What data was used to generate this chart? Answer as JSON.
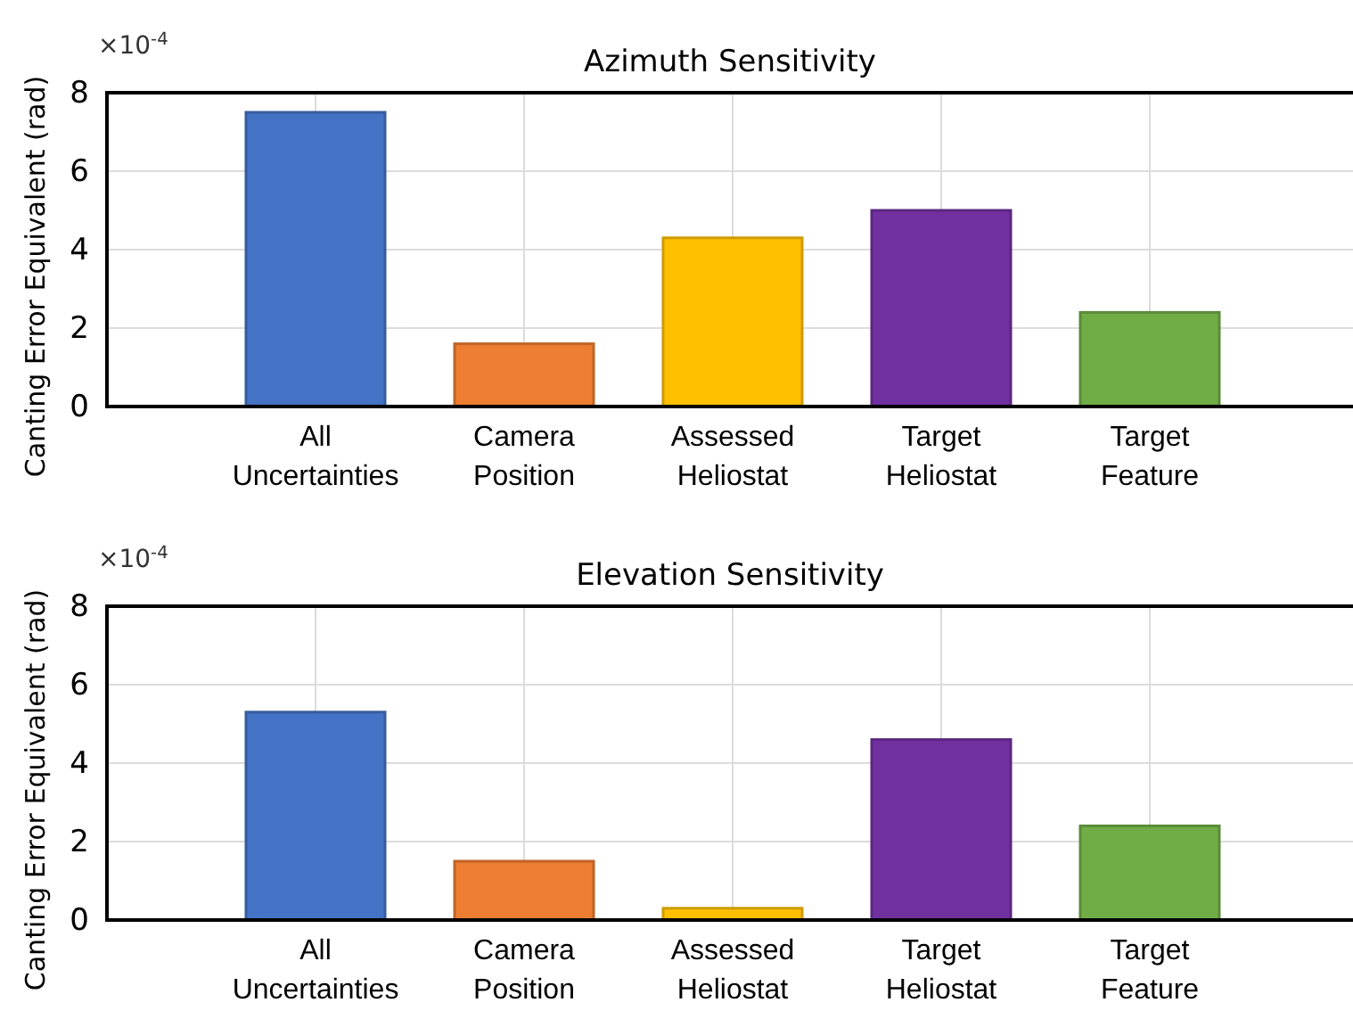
{
  "chart_data": [
    {
      "type": "bar",
      "title": "Azimuth Sensitivity",
      "ylabel": "Canting Error Equivalent (rad)",
      "annotations": [
        "×10$^{-4}$"
      ],
      "categories": [
        "All\nUncertainties",
        "Camera\nPosition",
        "Assessed\nHeliostat",
        "Target\nHeliostat",
        "Target\nFeature"
      ],
      "values": [
        7.5,
        1.6,
        4.3,
        5.0,
        2.4
      ],
      "colors": [
        "#4472c4",
        "#ed7d31",
        "#ffc000",
        "#7030a0",
        "#70ad47"
      ],
      "ylim": [
        0,
        8
      ],
      "yticks": [
        0,
        2,
        4,
        6,
        8
      ],
      "grid": true
    },
    {
      "type": "bar",
      "title": "Elevation Sensitivity",
      "ylabel": "Canting Error Equivalent (rad)",
      "annotations": [
        "×10$^{-4}$"
      ],
      "categories": [
        "All\nUncertainties",
        "Camera\nPosition",
        "Assessed\nHeliostat",
        "Target\nHeliostat",
        "Target\nFeature"
      ],
      "values": [
        5.3,
        1.5,
        0.3,
        4.6,
        2.4
      ],
      "colors": [
        "#4472c4",
        "#ed7d31",
        "#ffc000",
        "#7030a0",
        "#70ad47"
      ],
      "ylim": [
        0,
        8
      ],
      "yticks": [
        0,
        2,
        4,
        6,
        8
      ],
      "grid": true
    }
  ]
}
